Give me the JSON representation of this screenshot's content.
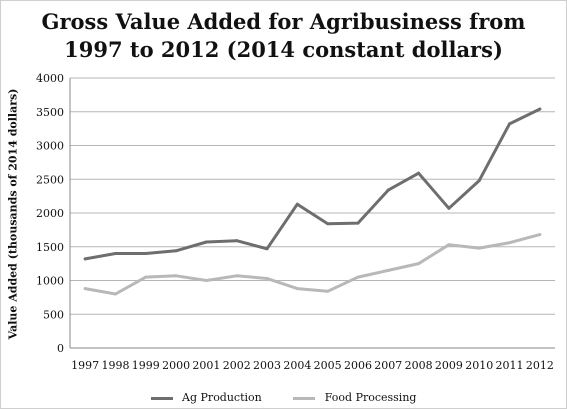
{
  "chart_data": {
    "type": "line",
    "title_lines": [
      "Gross Value Added for Agribusiness from",
      "1997 to 2012 (2014 constant dollars)"
    ],
    "xlabel": "",
    "ylabel": "Value Added (thousands of 2014 dollars)",
    "categories": [
      "1997",
      "1998",
      "1999",
      "2000",
      "2001",
      "2002",
      "2003",
      "2004",
      "2005",
      "2006",
      "2007",
      "2008",
      "2009",
      "2010",
      "2011",
      "2012"
    ],
    "ylim": [
      0,
      4000
    ],
    "yticks": [
      0,
      500,
      1000,
      1500,
      2000,
      2500,
      3000,
      3500,
      4000
    ],
    "grid": true,
    "legend_position": "bottom",
    "series": [
      {
        "name": "Ag Production",
        "color": "#6e6e6e",
        "values": [
          1320,
          1400,
          1400,
          1440,
          1570,
          1590,
          1470,
          2130,
          1840,
          1850,
          2340,
          2590,
          2070,
          2480,
          3320,
          3540
        ]
      },
      {
        "name": "Food Processing",
        "color": "#b8b8b8",
        "values": [
          880,
          800,
          1050,
          1070,
          1000,
          1070,
          1030,
          880,
          840,
          1050,
          1150,
          1250,
          1530,
          1480,
          1560,
          1680
        ]
      }
    ]
  }
}
